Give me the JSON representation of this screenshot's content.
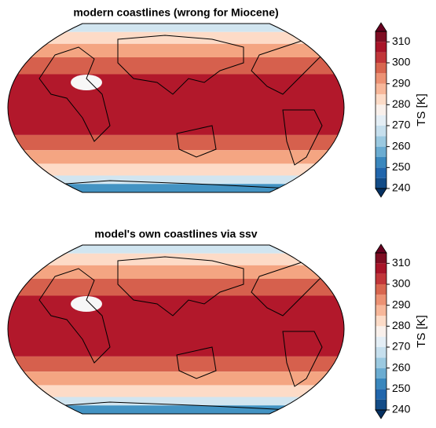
{
  "panels": [
    {
      "title": "modern coastlines (wrong for Miocene)",
      "colorbar": {
        "label": "TS [K]",
        "lim": [
          240,
          315
        ],
        "ticks": [
          240,
          250,
          260,
          270,
          280,
          290,
          300,
          310
        ]
      }
    },
    {
      "title": "model's own coastlines via ssv",
      "colorbar": {
        "label": "TS [K]",
        "lim": [
          240,
          315
        ],
        "ticks": [
          240,
          250,
          260,
          270,
          280,
          290,
          300,
          310
        ]
      }
    }
  ]
}
